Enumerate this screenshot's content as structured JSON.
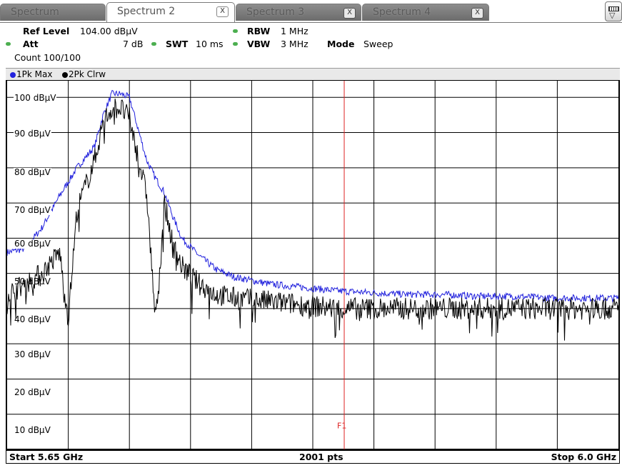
{
  "tabs": [
    {
      "label": "Spectrum",
      "state": "inactive"
    },
    {
      "label": "Spectrum 2",
      "state": "active"
    },
    {
      "label": "Spectrum 3",
      "state": "inactive"
    },
    {
      "label": "Spectrum 4",
      "state": "inactive"
    }
  ],
  "close_glyph": "X",
  "toolbar_icon": "display-config-icon",
  "settings": {
    "ref_level_label": "Ref Level",
    "ref_level_value": "104.00 dBµV",
    "att_label": "Att",
    "att_value": "7 dB",
    "swt_label": "SWT",
    "swt_value": "10 ms",
    "rbw_label": "RBW",
    "rbw_value": "1 MHz",
    "vbw_label": "VBW",
    "vbw_value": "3 MHz",
    "mode_label": "Mode",
    "mode_value": "Sweep",
    "count": "Count 100/100"
  },
  "traces": [
    {
      "label": "1Pk Max",
      "color": "#2222dd"
    },
    {
      "label": "2Pk Clrw",
      "color": "#000000"
    }
  ],
  "y_axis_labels": [
    "100 dBµV",
    "90 dBµV",
    "80 dBµV",
    "70 dBµV",
    "60 dBµV",
    "50 dBµV",
    "40 dBµV",
    "30 dBµV",
    "20 dBµV",
    "10 dBµV"
  ],
  "marker_label": "F1",
  "marker_color": "#dd2222",
  "footer": {
    "start": "Start 5.65 GHz",
    "points": "2001 pts",
    "stop": "Stop 6.0 GHz"
  },
  "chart_data": {
    "type": "line",
    "x_range_ghz": [
      5.65,
      6.0
    ],
    "ylim": [
      0,
      110
    ],
    "grid": true,
    "frequency_line_ghz": 5.843,
    "series": [
      {
        "name": "1Pk Max",
        "x": [
          5.65,
          5.66,
          5.67,
          5.68,
          5.69,
          5.7,
          5.705,
          5.71,
          5.715,
          5.72,
          5.73,
          5.735,
          5.74,
          5.745,
          5.75,
          5.76,
          5.77,
          5.78,
          5.8,
          5.82,
          5.84,
          5.86,
          5.88,
          5.9,
          5.92,
          5.94,
          5.96,
          5.98,
          6.0
        ],
        "values": [
          56,
          57,
          63,
          72,
          80,
          86,
          95,
          101,
          101,
          100,
          82,
          77,
          73,
          66,
          60,
          55,
          51,
          49,
          47,
          46,
          45,
          44.5,
          44,
          44,
          43.5,
          43.5,
          43,
          43,
          43
        ]
      },
      {
        "name": "2Pk Clrw",
        "x": [
          5.65,
          5.66,
          5.67,
          5.68,
          5.685,
          5.69,
          5.7,
          5.705,
          5.71,
          5.715,
          5.72,
          5.73,
          5.735,
          5.74,
          5.745,
          5.75,
          5.76,
          5.77,
          5.78,
          5.8,
          5.82,
          5.84,
          5.86,
          5.88,
          5.9,
          5.92,
          5.94,
          5.96,
          5.98,
          6.0
        ],
        "values": [
          44,
          47,
          50,
          56,
          37,
          68,
          82,
          93,
          97,
          97,
          94,
          72,
          36,
          70,
          58,
          52,
          47,
          44,
          43,
          42,
          41,
          40,
          40,
          40,
          40,
          40,
          40,
          40,
          40,
          40
        ]
      }
    ]
  }
}
